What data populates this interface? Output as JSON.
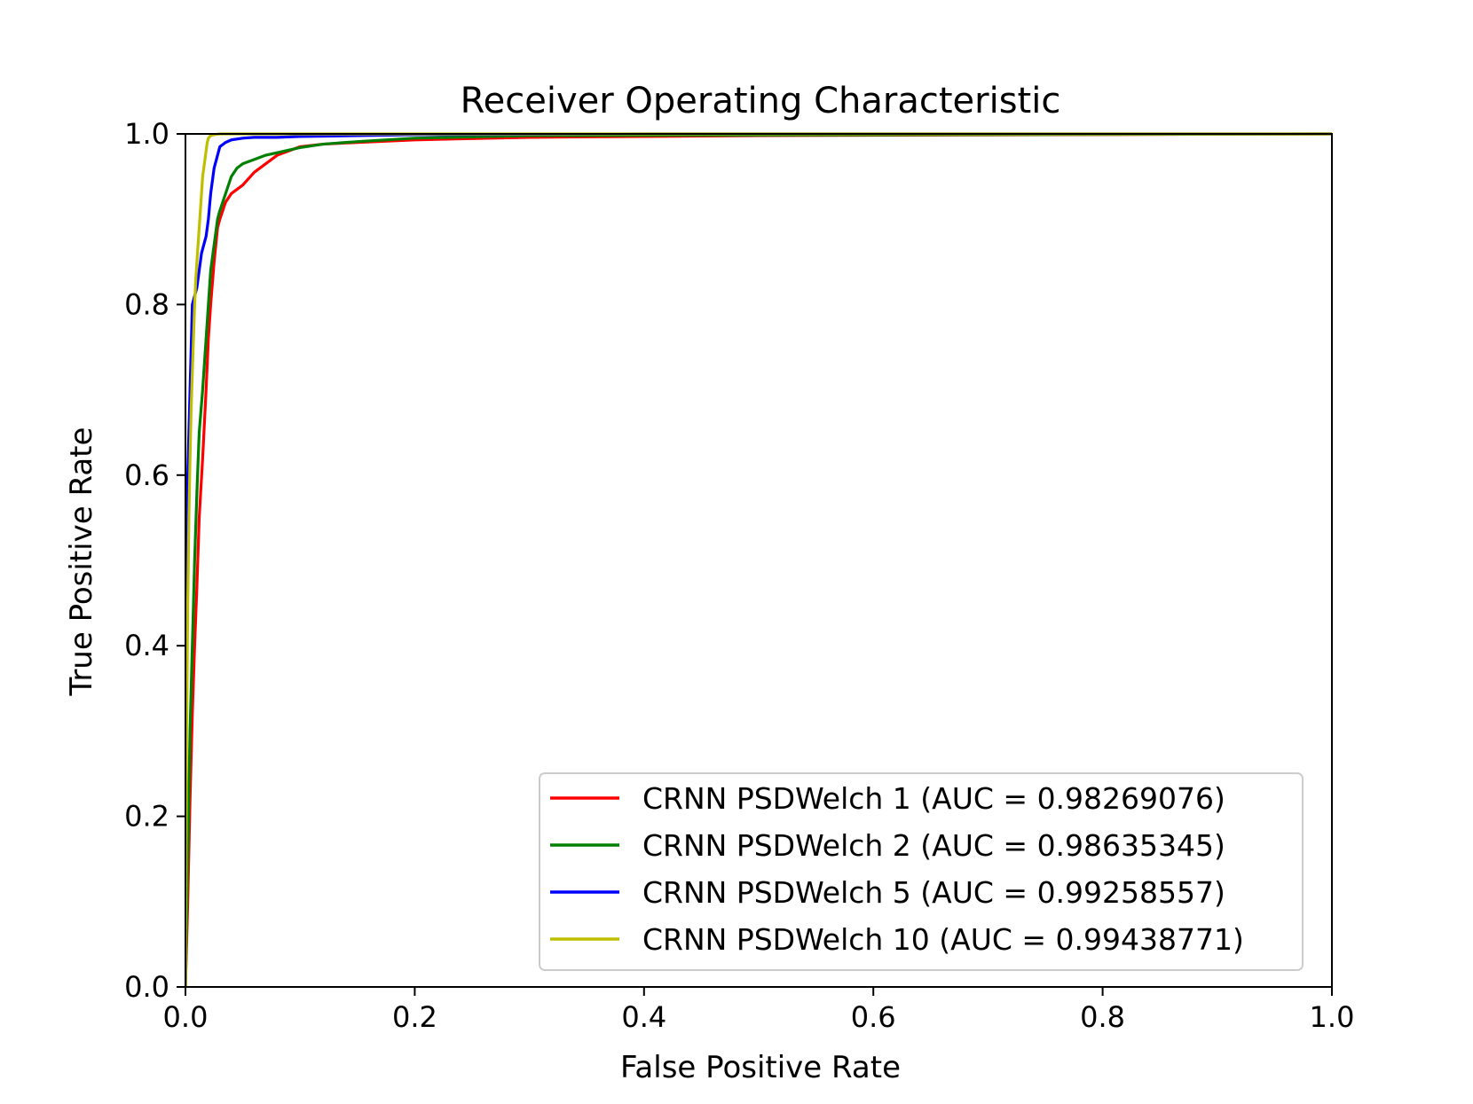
{
  "chart_data": {
    "type": "line",
    "title": "Receiver Operating Characteristic",
    "xlabel": "False Positive Rate",
    "ylabel": "True Positive Rate",
    "xlim": [
      0,
      1
    ],
    "ylim": [
      0,
      1
    ],
    "grid": false,
    "legend_position": "lower-right",
    "xticks": [
      {
        "value": 0.0,
        "label": "0.0"
      },
      {
        "value": 0.2,
        "label": "0.2"
      },
      {
        "value": 0.4,
        "label": "0.4"
      },
      {
        "value": 0.6,
        "label": "0.6"
      },
      {
        "value": 0.8,
        "label": "0.8"
      },
      {
        "value": 1.0,
        "label": "1.0"
      }
    ],
    "yticks": [
      {
        "value": 0.0,
        "label": "0.0"
      },
      {
        "value": 0.2,
        "label": "0.2"
      },
      {
        "value": 0.4,
        "label": "0.4"
      },
      {
        "value": 0.6,
        "label": "0.6"
      },
      {
        "value": 0.8,
        "label": "0.8"
      },
      {
        "value": 1.0,
        "label": "1.0"
      }
    ],
    "series": [
      {
        "name": "CRNN PSDWelch 1",
        "label": "CRNN PSDWelch 1 (AUC = 0.98269076)",
        "auc": 0.98269076,
        "color": "#ff0000",
        "x": [
          0,
          0.002,
          0.004,
          0.006,
          0.008,
          0.01,
          0.012,
          0.015,
          0.018,
          0.02,
          0.022,
          0.025,
          0.028,
          0.03,
          0.035,
          0.04,
          0.05,
          0.06,
          0.07,
          0.08,
          0.09,
          0.1,
          0.12,
          0.15,
          0.2,
          0.3,
          0.5,
          0.75,
          1.0
        ],
        "y": [
          0,
          0.1,
          0.22,
          0.32,
          0.4,
          0.47,
          0.55,
          0.62,
          0.7,
          0.76,
          0.8,
          0.85,
          0.89,
          0.9,
          0.92,
          0.93,
          0.94,
          0.955,
          0.965,
          0.975,
          0.98,
          0.985,
          0.988,
          0.99,
          0.993,
          0.996,
          0.998,
          0.999,
          1.0
        ]
      },
      {
        "name": "CRNN PSDWelch 2",
        "label": "CRNN PSDWelch 2 (AUC = 0.98635345)",
        "auc": 0.98635345,
        "color": "#008000",
        "x": [
          0,
          0.002,
          0.004,
          0.006,
          0.008,
          0.01,
          0.012,
          0.015,
          0.018,
          0.02,
          0.022,
          0.025,
          0.028,
          0.03,
          0.035,
          0.04,
          0.045,
          0.05,
          0.06,
          0.07,
          0.08,
          0.1,
          0.12,
          0.15,
          0.2,
          0.3,
          1.0
        ],
        "y": [
          0,
          0.15,
          0.3,
          0.4,
          0.5,
          0.58,
          0.65,
          0.7,
          0.76,
          0.8,
          0.84,
          0.87,
          0.9,
          0.91,
          0.93,
          0.95,
          0.96,
          0.965,
          0.97,
          0.975,
          0.978,
          0.984,
          0.988,
          0.991,
          0.995,
          0.998,
          1.0
        ]
      },
      {
        "name": "CRNN PSDWelch 5",
        "label": "CRNN PSDWelch 5 (AUC = 0.99258557)",
        "auc": 0.99258557,
        "color": "#0000ff",
        "x": [
          0,
          0.001,
          0.002,
          0.003,
          0.004,
          0.005,
          0.006,
          0.008,
          0.01,
          0.012,
          0.014,
          0.016,
          0.018,
          0.02,
          0.022,
          0.025,
          0.028,
          0.03,
          0.035,
          0.04,
          0.05,
          0.06,
          0.08,
          0.1,
          0.15,
          0.2,
          0.4,
          1.0
        ],
        "y": [
          0,
          0.4,
          0.6,
          0.65,
          0.7,
          0.75,
          0.8,
          0.81,
          0.82,
          0.84,
          0.86,
          0.87,
          0.88,
          0.9,
          0.93,
          0.96,
          0.975,
          0.985,
          0.99,
          0.993,
          0.995,
          0.996,
          0.996,
          0.997,
          0.998,
          0.999,
          1.0,
          1.0
        ]
      },
      {
        "name": "CRNN PSDWelch 10",
        "label": "CRNN PSDWelch 10 (AUC = 0.99438771)",
        "auc": 0.99438771,
        "color": "#bfbf00",
        "x": [
          0,
          0.001,
          0.002,
          0.003,
          0.004,
          0.005,
          0.006,
          0.007,
          0.008,
          0.009,
          0.01,
          0.011,
          0.012,
          0.013,
          0.014,
          0.015,
          0.016,
          0.017,
          0.018,
          0.019,
          0.02,
          0.022,
          0.025,
          0.03,
          0.05,
          0.1,
          1.0
        ],
        "y": [
          0,
          0.3,
          0.45,
          0.55,
          0.62,
          0.68,
          0.72,
          0.76,
          0.8,
          0.83,
          0.85,
          0.87,
          0.89,
          0.91,
          0.93,
          0.95,
          0.96,
          0.97,
          0.98,
          0.99,
          0.995,
          0.998,
          0.999,
          1.0,
          1.0,
          1.0,
          1.0
        ]
      }
    ]
  }
}
